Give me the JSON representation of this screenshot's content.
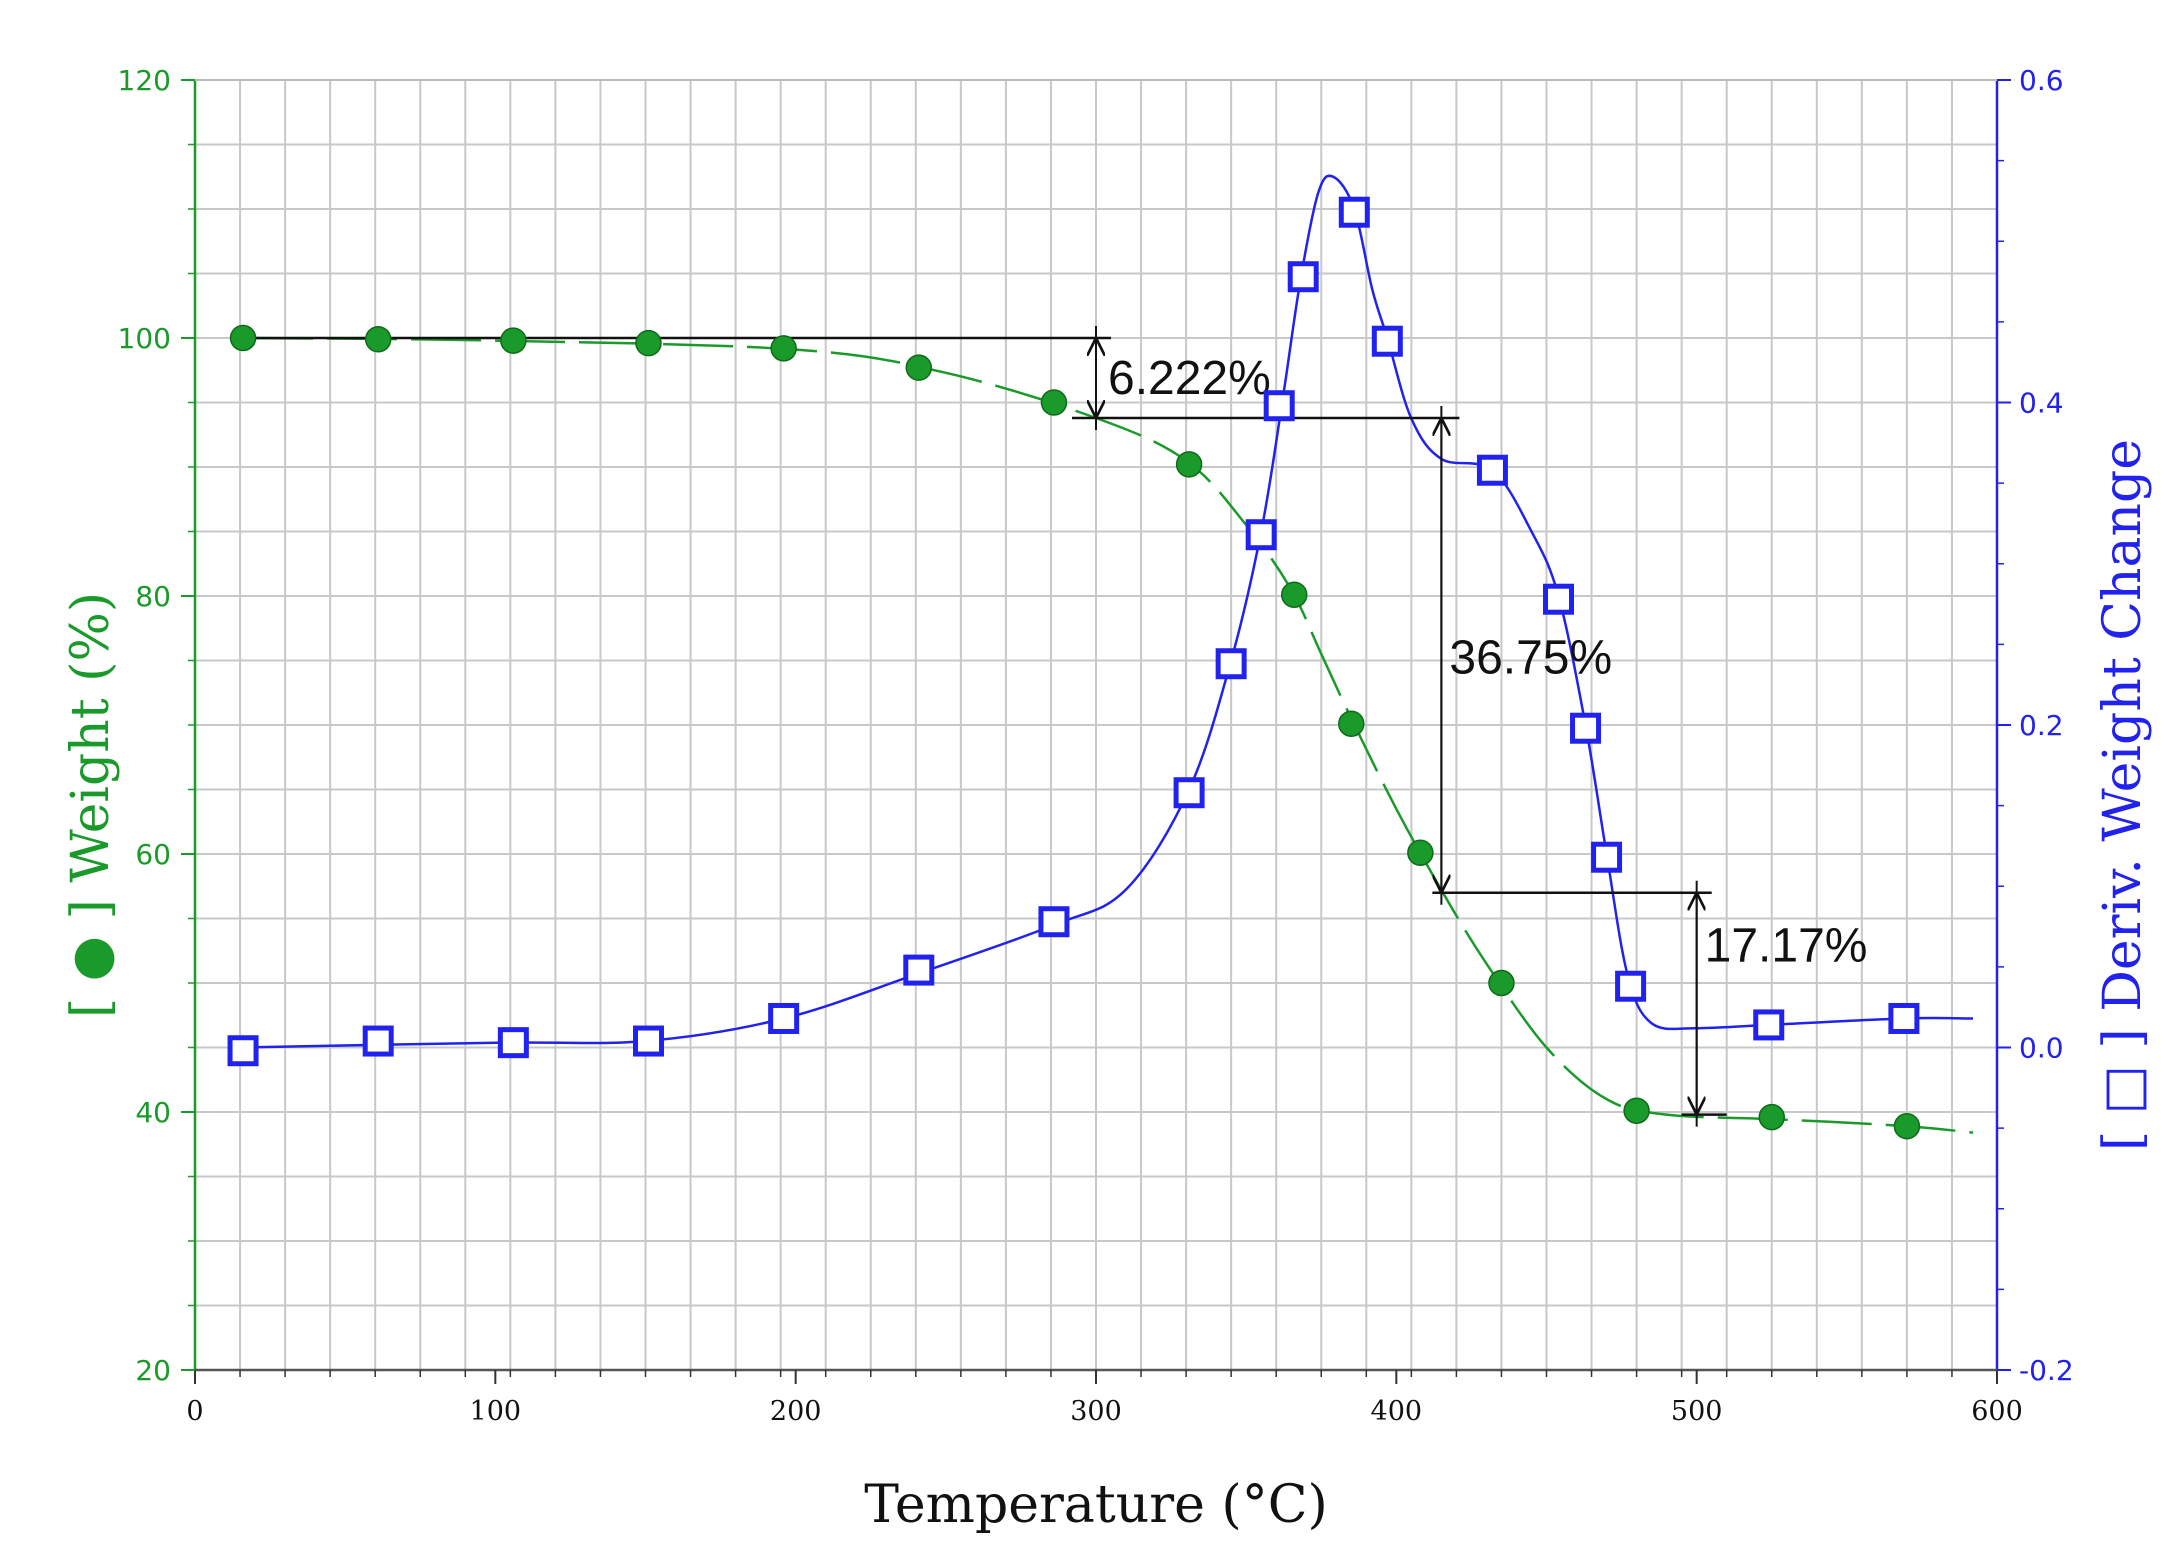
{
  "chart_data": {
    "type": "line",
    "x_label": "Temperature (°C)",
    "y_label_left": "Weight (%)",
    "y_label_right": "Deriv. Weight Change",
    "legend_left": "[ ● ] Weight (%)",
    "legend_right": "[ □ ] Deriv. Weight Change",
    "xlim": [
      0,
      600
    ],
    "ylim_left": [
      20,
      120
    ],
    "ylim_right": [
      -0.2,
      0.6
    ],
    "x_ticks": [
      0,
      100,
      200,
      300,
      400,
      500,
      600
    ],
    "y_ticks_left": [
      20,
      40,
      60,
      80,
      100,
      120
    ],
    "y_ticks_right": [
      "-0.2",
      "0.0",
      "0.2",
      "0.4",
      "0.6"
    ],
    "grid": true,
    "colors": {
      "weight": "#1a9a2a",
      "deriv": "#2222ee",
      "annotation": "#111111"
    },
    "series": [
      {
        "name": "Weight (%)",
        "axis": "left",
        "marker": "filled-circle",
        "line": "dashed",
        "points": [
          [
            16,
            100.0
          ],
          [
            61,
            99.9
          ],
          [
            106,
            99.8
          ],
          [
            151,
            99.6
          ],
          [
            196,
            99.2
          ],
          [
            241,
            97.7
          ],
          [
            286,
            95.0
          ],
          [
            331,
            90.2
          ],
          [
            366,
            80.1
          ],
          [
            385,
            70.1
          ],
          [
            408,
            60.1
          ],
          [
            435,
            50.0
          ],
          [
            480,
            40.1
          ],
          [
            525,
            39.6
          ],
          [
            570,
            38.9
          ]
        ],
        "curve": [
          [
            16,
            100.0
          ],
          [
            100,
            99.8
          ],
          [
            200,
            99.1
          ],
          [
            250,
            97.3
          ],
          [
            300,
            93.8
          ],
          [
            330,
            90.5
          ],
          [
            350,
            85.5
          ],
          [
            365,
            80.5
          ],
          [
            375,
            75.5
          ],
          [
            385,
            70.5
          ],
          [
            400,
            63.5
          ],
          [
            415,
            57.2
          ],
          [
            430,
            51.5
          ],
          [
            450,
            45.0
          ],
          [
            470,
            41.0
          ],
          [
            490,
            39.8
          ],
          [
            530,
            39.4
          ],
          [
            570,
            38.9
          ],
          [
            592,
            38.4
          ]
        ]
      },
      {
        "name": "Deriv. Weight Change",
        "axis": "right",
        "marker": "open-square",
        "line": "solid",
        "points": [
          [
            16,
            -0.002
          ],
          [
            61,
            0.004
          ],
          [
            106,
            0.003
          ],
          [
            151,
            0.004
          ],
          [
            196,
            0.018
          ],
          [
            241,
            0.048
          ],
          [
            286,
            0.078
          ],
          [
            331,
            0.158
          ],
          [
            345,
            0.238
          ],
          [
            355,
            0.318
          ],
          [
            361,
            0.398
          ],
          [
            369,
            0.478
          ],
          [
            386,
            0.518
          ],
          [
            397,
            0.438
          ],
          [
            432,
            0.358
          ],
          [
            454,
            0.278
          ],
          [
            463,
            0.198
          ],
          [
            470,
            0.118
          ],
          [
            478,
            0.038
          ],
          [
            524,
            0.014
          ],
          [
            569,
            0.018
          ]
        ],
        "curve": [
          [
            16,
            0.0
          ],
          [
            100,
            0.003
          ],
          [
            150,
            0.004
          ],
          [
            196,
            0.018
          ],
          [
            241,
            0.046
          ],
          [
            286,
            0.076
          ],
          [
            310,
            0.098
          ],
          [
            331,
            0.16
          ],
          [
            345,
            0.24
          ],
          [
            355,
            0.32
          ],
          [
            362,
            0.4
          ],
          [
            368,
            0.475
          ],
          [
            374,
            0.53
          ],
          [
            379,
            0.54
          ],
          [
            386,
            0.52
          ],
          [
            392,
            0.47
          ],
          [
            397,
            0.44
          ],
          [
            405,
            0.39
          ],
          [
            415,
            0.365
          ],
          [
            432,
            0.358
          ],
          [
            445,
            0.32
          ],
          [
            454,
            0.28
          ],
          [
            463,
            0.2
          ],
          [
            470,
            0.12
          ],
          [
            477,
            0.045
          ],
          [
            485,
            0.015
          ],
          [
            500,
            0.012
          ],
          [
            524,
            0.014
          ],
          [
            569,
            0.018
          ],
          [
            592,
            0.018
          ]
        ]
      }
    ],
    "annotations": [
      {
        "label": "6.222%",
        "x": 300,
        "y_top": 100.0,
        "y_bottom": 93.8
      },
      {
        "label": "36.75%",
        "x": 415,
        "y_top": 93.8,
        "y_bottom": 57.0
      },
      {
        "label": "17.17%",
        "x": 500,
        "y_top": 57.0,
        "y_bottom": 39.8
      }
    ]
  }
}
